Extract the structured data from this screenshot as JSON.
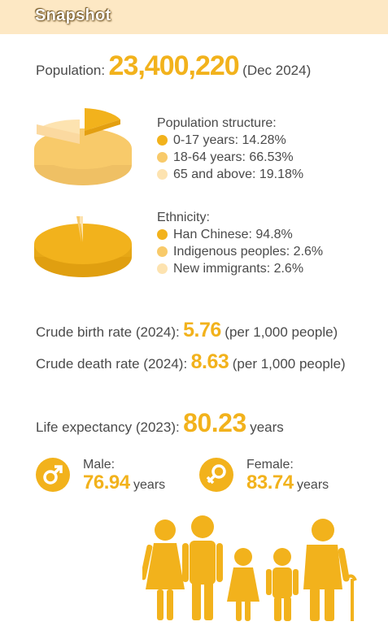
{
  "header": {
    "title": "Snapshot"
  },
  "population": {
    "label": "Population:",
    "value": "23,400,220",
    "note": "(Dec 2024)"
  },
  "population_structure": {
    "title": "Population structure:",
    "items": [
      {
        "label": "0-17 years: 14.28%",
        "color": "#f2b21c",
        "share": 14.28
      },
      {
        "label": "18-64 years: 66.53%",
        "color": "#f8ca6a",
        "share": 66.53
      },
      {
        "label": "65 and above: 19.18%",
        "color": "#fde3b0",
        "share": 19.18
      }
    ]
  },
  "ethnicity": {
    "title": "Ethnicity:",
    "items": [
      {
        "label": "Han Chinese: 94.8%",
        "color": "#f2b21c",
        "share": 94.8
      },
      {
        "label": "Indigenous peoples: 2.6%",
        "color": "#f8ca6a",
        "share": 2.6
      },
      {
        "label": "New immigrants: 2.6%",
        "color": "#fde3b0",
        "share": 2.6
      }
    ]
  },
  "birth_rate": {
    "label": "Crude birth rate (2024):",
    "value": "5.76",
    "note": "(per 1,000 people)"
  },
  "death_rate": {
    "label": "Crude death rate (2024):",
    "value": "8.63",
    "note": "(per 1,000 people)"
  },
  "life_expectancy": {
    "label": "Life expectancy (2023):",
    "value": "80.23",
    "unit": "years"
  },
  "male": {
    "label": "Male:",
    "value": "76.94",
    "unit": "years",
    "icon": "male-symbol-icon"
  },
  "female": {
    "label": "Female:",
    "value": "83.74",
    "unit": "years",
    "icon": "female-symbol-icon"
  },
  "colors": {
    "accent": "#f2b21c",
    "header_bg": "#fde8c4",
    "text": "#4a4a4a"
  }
}
